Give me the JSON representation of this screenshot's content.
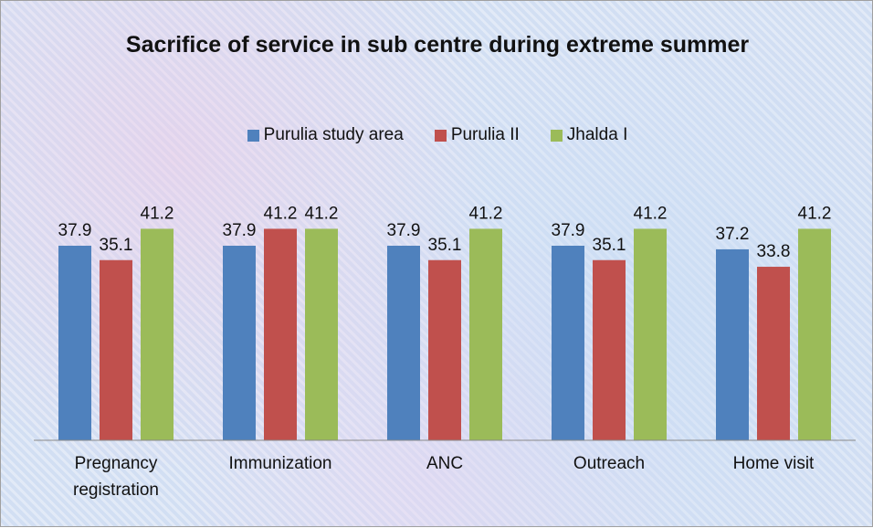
{
  "chart_data": {
    "type": "bar",
    "title": "Sacrifice of service in sub centre during extreme summer",
    "categories": [
      "Pregnancy registration",
      "Immunization",
      "ANC",
      "Outreach",
      "Home visit"
    ],
    "series": [
      {
        "name": "Purulia study area",
        "color": "#4f81bd",
        "values": [
          37.9,
          37.9,
          37.9,
          37.9,
          37.2
        ]
      },
      {
        "name": "Purulia II",
        "color": "#c0504d",
        "values": [
          35.1,
          41.2,
          35.1,
          35.1,
          33.8
        ]
      },
      {
        "name": "Jhalda I",
        "color": "#9bbb59",
        "values": [
          41.2,
          41.2,
          41.2,
          41.2,
          41.2
        ]
      }
    ],
    "ylim": [
      0,
      50
    ],
    "legend": "top"
  }
}
